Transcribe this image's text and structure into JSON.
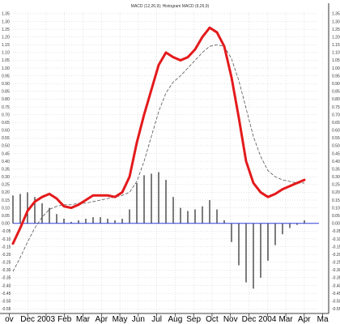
{
  "chart_data": {
    "type": "line",
    "title": "MACD (12,26,9); Histogram MACD (9,26,9)",
    "x_axis_labels": [
      "ov",
      "Dec",
      "2003",
      "Feb",
      "Mar",
      "Apr",
      "May",
      "Jun",
      "Jul",
      "Aug",
      "Sep",
      "Oct",
      "Nov",
      "Dec",
      "2004",
      "Mar",
      "Apr",
      "Ma"
    ],
    "y_tick_labels": [
      "1.35",
      "1.30",
      "1.25",
      "1.20",
      "1.15",
      "1.10",
      "1.05",
      "1.00",
      "0.95",
      "0.90",
      "0.85",
      "0.80",
      "0.75",
      "0.70",
      "0.65",
      "0.60",
      "0.55",
      "0.50",
      "0.45",
      "0.40",
      "0.35",
      "0.30",
      "0.25",
      "0.20",
      "0.15",
      "0.10",
      "0.05",
      "0.00",
      "-0.05",
      "-0.10",
      "-0.15",
      "-0.20",
      "-0.25",
      "-0.30",
      "-0.35",
      "-0.40",
      "-0.45",
      "-0.50",
      "-0.55"
    ],
    "ylim": [
      -0.58,
      1.36
    ],
    "x_range": [
      0,
      42
    ],
    "grid": true,
    "colors": {
      "macd": "#e41a1c",
      "signal": "#555555",
      "zero_line": "#2f3fd8",
      "histogram": "#111111",
      "grid": "#c8c8c8"
    },
    "series": [
      {
        "kind": "macd",
        "x": [
          0,
          1,
          2,
          3,
          4,
          5,
          6,
          7,
          8,
          9,
          10,
          11,
          12,
          13,
          14,
          15,
          16,
          17,
          18,
          19,
          20,
          21,
          22,
          23,
          24,
          25,
          26,
          27,
          28,
          29,
          30,
          31,
          32,
          33,
          34,
          35,
          36,
          37,
          38,
          39,
          40
        ],
        "values": [
          -0.13,
          -0.03,
          0.08,
          0.14,
          0.17,
          0.19,
          0.16,
          0.11,
          0.1,
          0.12,
          0.15,
          0.18,
          0.18,
          0.18,
          0.17,
          0.2,
          0.3,
          0.52,
          0.7,
          0.86,
          1.02,
          1.1,
          1.07,
          1.05,
          1.07,
          1.12,
          1.2,
          1.26,
          1.23,
          1.14,
          0.94,
          0.68,
          0.4,
          0.26,
          0.2,
          0.17,
          0.19,
          0.22,
          0.24,
          0.26,
          0.28
        ]
      },
      {
        "kind": "signal",
        "x": [
          0,
          1,
          2,
          3,
          4,
          5,
          6,
          7,
          8,
          9,
          10,
          11,
          12,
          13,
          14,
          15,
          16,
          17,
          18,
          19,
          20,
          21,
          22,
          23,
          24,
          25,
          26,
          27,
          28,
          29,
          30,
          31,
          32,
          33,
          34,
          35,
          36,
          37,
          38,
          39,
          40
        ],
        "values": [
          -0.31,
          -0.22,
          -0.12,
          -0.03,
          0.04,
          0.09,
          0.11,
          0.12,
          0.12,
          0.13,
          0.13,
          0.14,
          0.15,
          0.16,
          0.17,
          0.18,
          0.2,
          0.27,
          0.4,
          0.56,
          0.72,
          0.84,
          0.91,
          0.95,
          1.0,
          1.05,
          1.1,
          1.14,
          1.15,
          1.14,
          1.06,
          0.92,
          0.74,
          0.56,
          0.43,
          0.34,
          0.3,
          0.28,
          0.27,
          0.26,
          0.26
        ]
      },
      {
        "kind": "histogram",
        "x": [
          0,
          1,
          2,
          3,
          4,
          5,
          6,
          7,
          8,
          9,
          10,
          11,
          12,
          13,
          14,
          15,
          16,
          17,
          18,
          19,
          20,
          21,
          22,
          23,
          24,
          25,
          26,
          27,
          28,
          29,
          30,
          31,
          32,
          33,
          34,
          35,
          36,
          37,
          38,
          39,
          40
        ],
        "values": [
          0.18,
          0.19,
          0.2,
          0.17,
          0.13,
          0.1,
          0.06,
          0.03,
          0.01,
          0.02,
          0.03,
          0.04,
          0.04,
          0.03,
          0.02,
          0.03,
          0.09,
          0.26,
          0.31,
          0.32,
          0.33,
          0.28,
          0.17,
          0.1,
          0.08,
          0.09,
          0.11,
          0.15,
          0.09,
          0.02,
          -0.12,
          -0.27,
          -0.38,
          -0.42,
          -0.35,
          -0.24,
          -0.14,
          -0.07,
          -0.03,
          -0.01,
          0.02
        ]
      }
    ]
  }
}
